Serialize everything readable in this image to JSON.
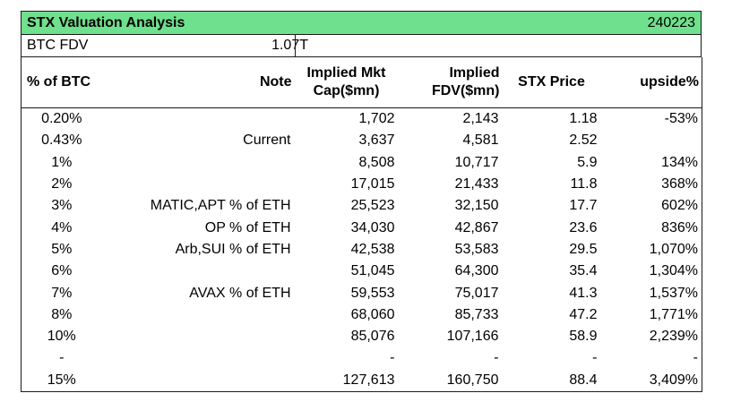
{
  "title": "STX Valuation Analysis",
  "date": "240223",
  "btc_fdv": {
    "label": "BTC FDV",
    "value": "1.07T"
  },
  "headers": [
    "% of BTC",
    "Note",
    "Implied Mkt Cap($mn)",
    "Implied FDV($mn)",
    "STX Price",
    "upside%"
  ],
  "rows": [
    [
      "0.20%",
      "",
      "1,702",
      "2,143",
      "1.18",
      "-53%"
    ],
    [
      "0.43%",
      "Current",
      "3,637",
      "4,581",
      "2.52",
      ""
    ],
    [
      "1%",
      "",
      "8,508",
      "10,717",
      "5.9",
      "134%"
    ],
    [
      "2%",
      "",
      "17,015",
      "21,433",
      "11.8",
      "368%"
    ],
    [
      "3%",
      "MATIC,APT % of ETH",
      "25,523",
      "32,150",
      "17.7",
      "602%"
    ],
    [
      "4%",
      "OP % of ETH",
      "34,030",
      "42,867",
      "23.6",
      "836%"
    ],
    [
      "5%",
      "Arb,SUI % of ETH",
      "42,538",
      "53,583",
      "29.5",
      "1,070%"
    ],
    [
      "6%",
      "",
      "51,045",
      "64,300",
      "35.4",
      "1,304%"
    ],
    [
      "7%",
      "AVAX % of  ETH",
      "59,553",
      "75,017",
      "41.3",
      "1,537%"
    ],
    [
      "8%",
      "",
      "68,060",
      "85,733",
      "47.2",
      "1,771%"
    ],
    [
      "10%",
      "",
      "85,076",
      "107,166",
      "58.9",
      "2,239%"
    ],
    [
      "-",
      "",
      "-",
      "-",
      "-",
      "-"
    ],
    [
      "15%",
      "",
      "127,613",
      "160,750",
      "88.4",
      "3,409%"
    ]
  ],
  "colors": {
    "title_bg": "#6fe08d",
    "border": "#1a1a1a"
  }
}
